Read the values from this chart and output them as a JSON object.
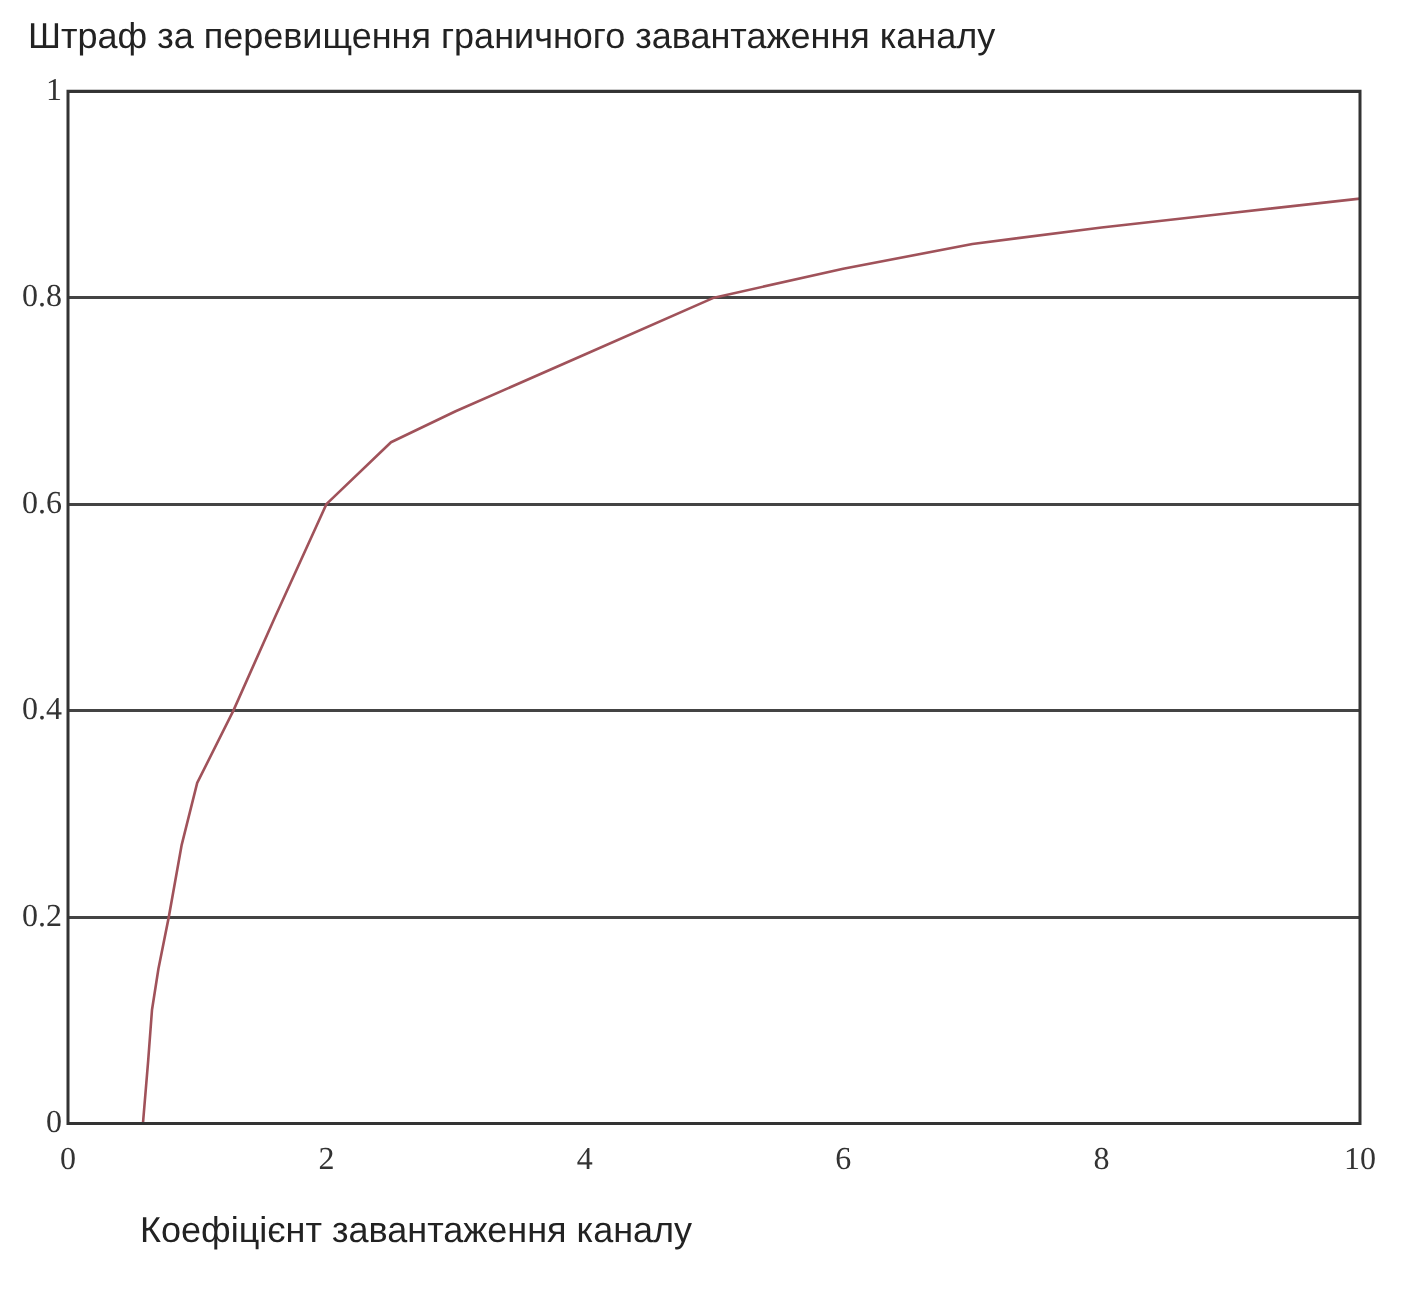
{
  "chart_data": {
    "type": "line",
    "title": "Штраф за перевищення граничного завантаження каналу",
    "xlabel": "Коефіцієнт завантаження каналу",
    "series": [
      {
        "color": "#a0525a",
        "x": [
          0.58,
          0.62,
          0.65,
          0.7,
          0.78,
          0.88,
          1.0,
          1.28,
          1.6,
          2.0,
          2.5,
          3.0,
          4.0,
          5.0,
          6.0,
          7.0,
          8.0,
          9.0,
          10.0
        ],
        "values": [
          0,
          0.06,
          0.11,
          0.15,
          0.2,
          0.27,
          0.33,
          0.4,
          0.49,
          0.6,
          0.66,
          0.69,
          0.745,
          0.8,
          0.828,
          0.852,
          0.868,
          0.882,
          0.896
        ]
      }
    ],
    "xlim": [
      0,
      10
    ],
    "xticks": [
      0,
      2,
      4,
      6,
      8,
      10
    ],
    "ylim": [
      0,
      1
    ],
    "yticks": [
      0,
      0.2,
      0.4,
      0.6,
      0.8,
      1
    ],
    "grid": "y",
    "legend": false,
    "marker": "none",
    "line_style": "solid"
  }
}
